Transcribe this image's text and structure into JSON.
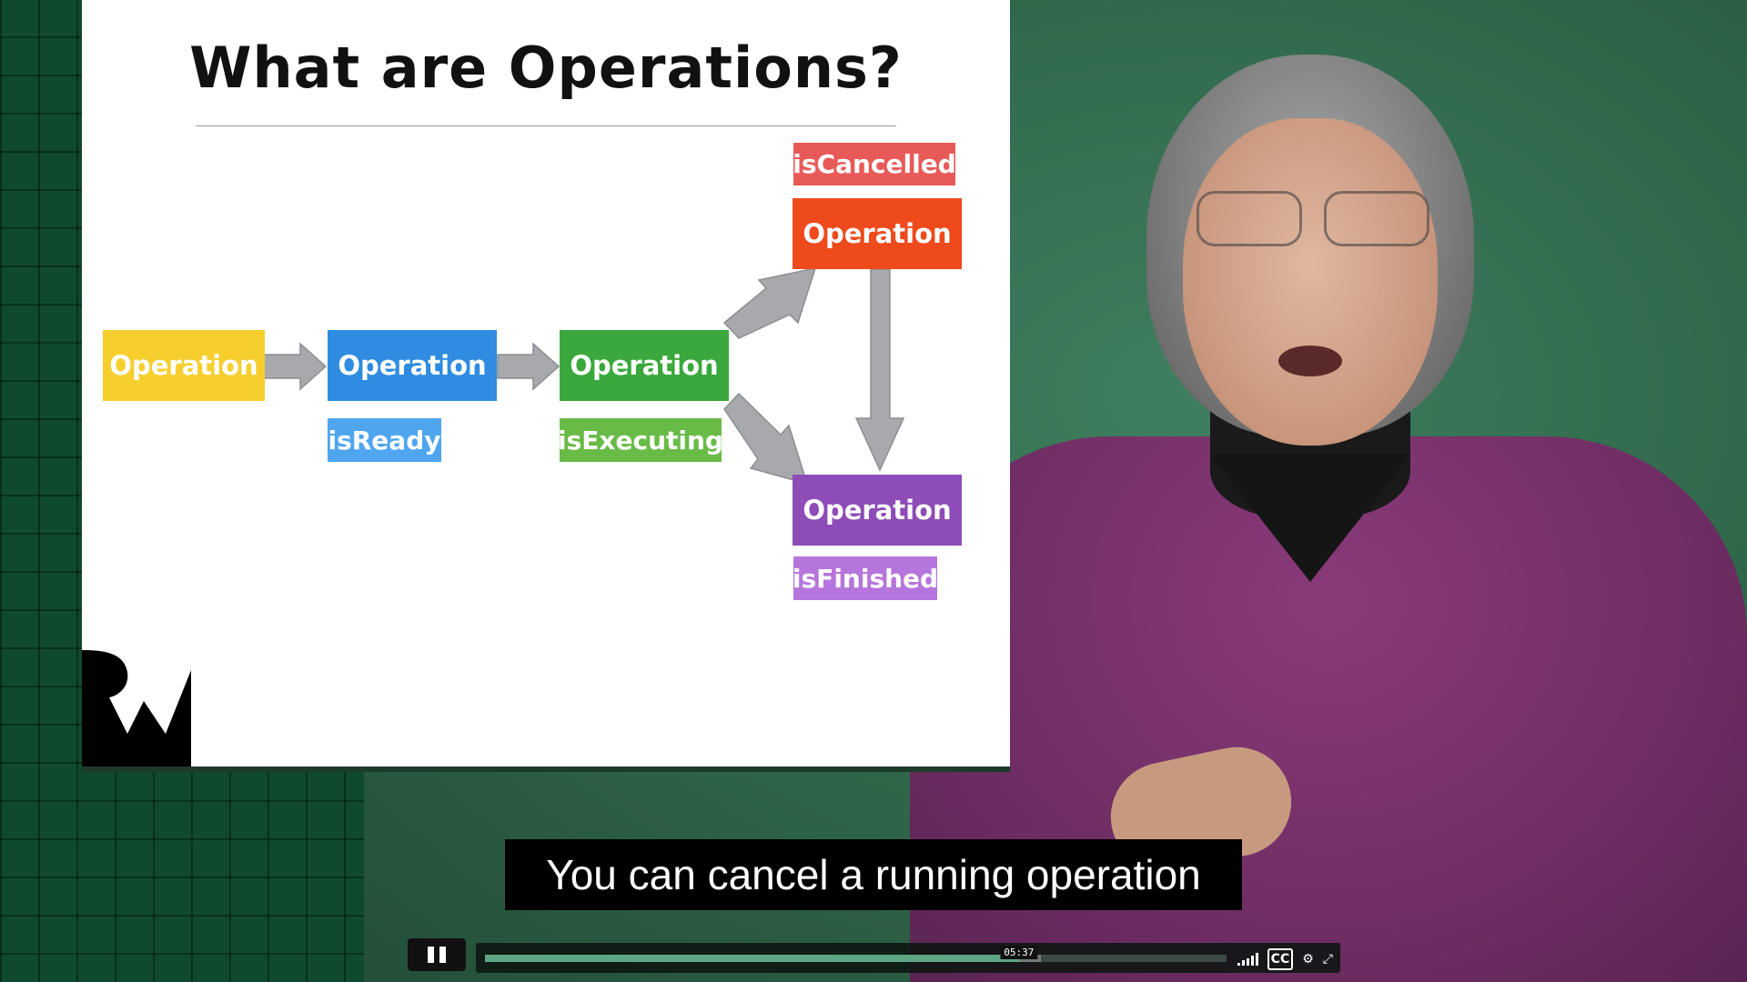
{
  "slide": {
    "title": "What are Operations?",
    "boxes": [
      {
        "id": "op1",
        "label": "Operation",
        "color": "#f6cf2f"
      },
      {
        "id": "op2",
        "label": "Operation",
        "color": "#2f8ce0"
      },
      {
        "id": "op3",
        "label": "Operation",
        "color": "#3aa83c"
      },
      {
        "id": "op4",
        "label": "Operation",
        "color": "#ee4a1c"
      },
      {
        "id": "op5",
        "label": "Operation",
        "color": "#8d4cb7"
      }
    ],
    "tags": {
      "isReady": {
        "label": "isReady",
        "color": "#4fa6ef"
      },
      "isExecuting": {
        "label": "isExecuting",
        "color": "#69bb47"
      },
      "isCancelled": {
        "label": "isCancelled",
        "color": "#e85a58"
      },
      "isFinished": {
        "label": "isFinished",
        "color": "#b675dc"
      }
    },
    "logo": "rw-logo-icon"
  },
  "caption": {
    "text": "You can cancel a running operation"
  },
  "player": {
    "state": "playing",
    "current_time": "05:37",
    "progress": 0.72,
    "buffered": 0.75,
    "icons": [
      "pause-icon",
      "volume-icon",
      "captions-icon",
      "settings-icon",
      "fullscreen-icon"
    ],
    "cc_label": "CC"
  },
  "colors": {
    "arrow": "#a7a9ac",
    "arrow_stroke": "#8c8e91"
  }
}
